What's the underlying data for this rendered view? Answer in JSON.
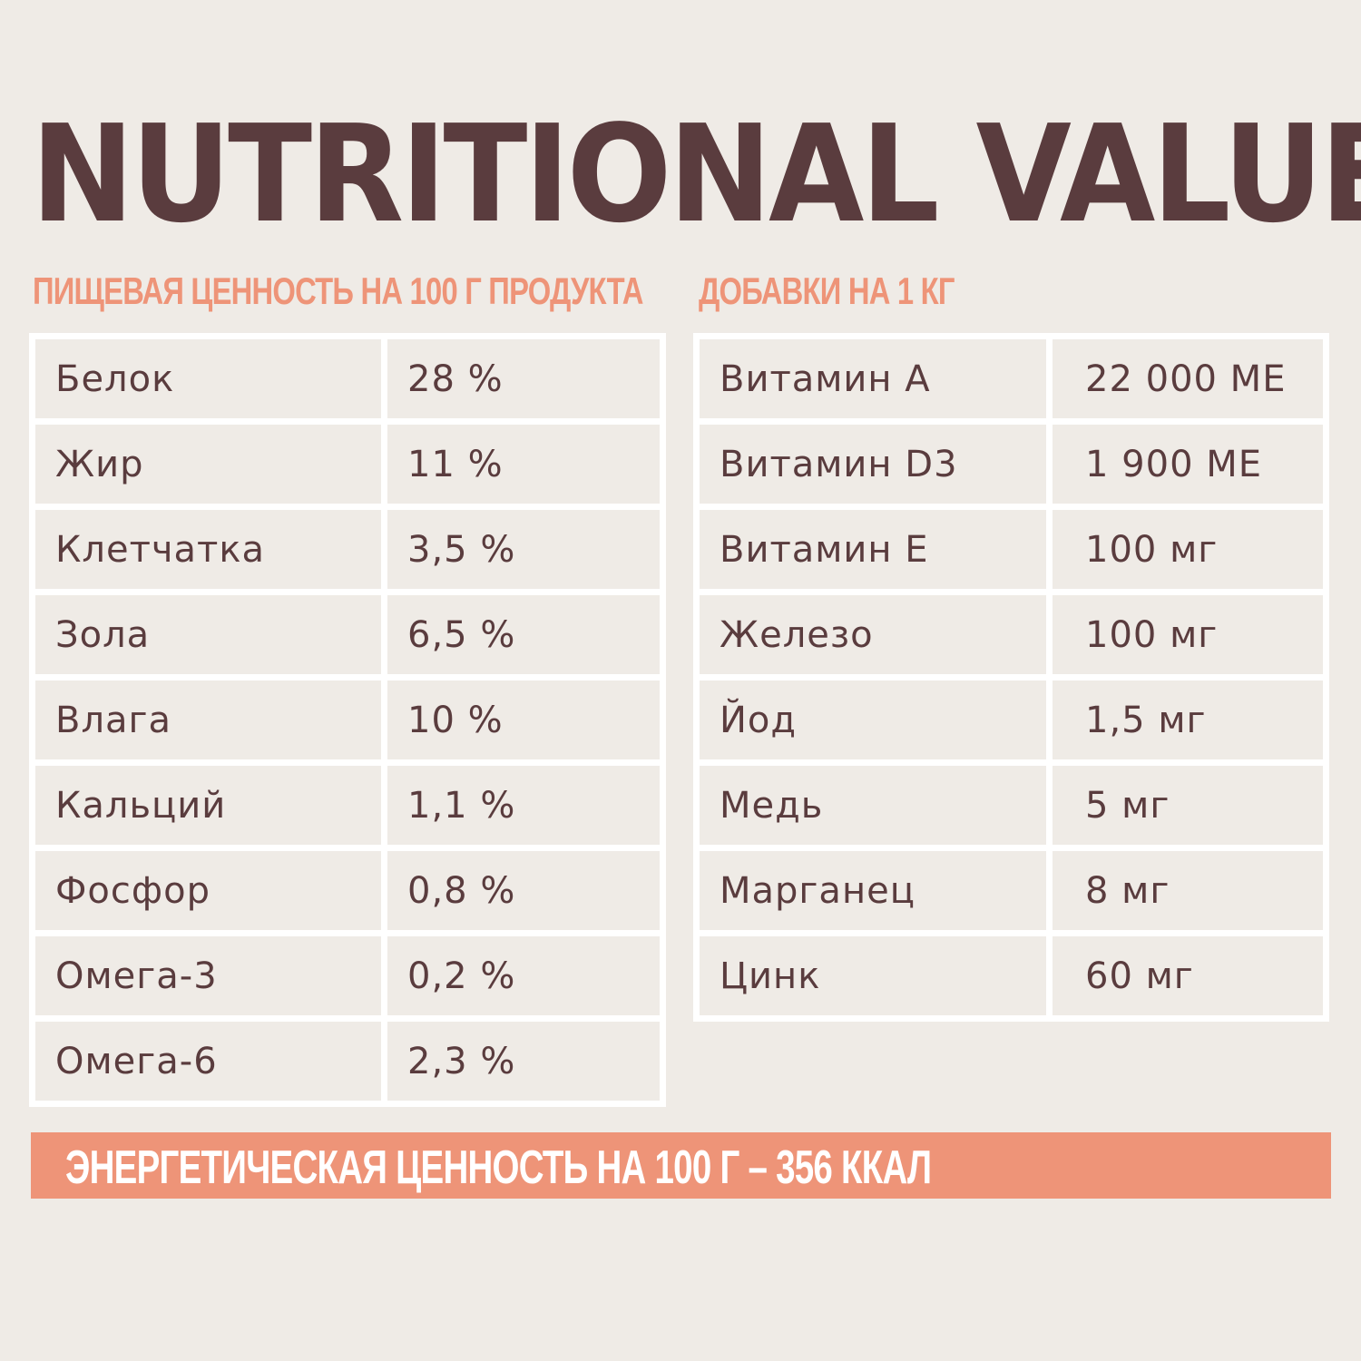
{
  "title": "NUTRITIONAL VALUE",
  "nutrition": {
    "heading": "ПИЩЕВАЯ ЦЕННОСТЬ НА 100 Г ПРОДУКТА",
    "rows": [
      {
        "name": "Белок",
        "value": "28 %"
      },
      {
        "name": "Жир",
        "value": "11 %"
      },
      {
        "name": "Клетчатка",
        "value": "3,5 %"
      },
      {
        "name": "Зола",
        "value": "6,5 %"
      },
      {
        "name": "Влага",
        "value": "10 %"
      },
      {
        "name": "Кальций",
        "value": "1,1 %"
      },
      {
        "name": "Фосфор",
        "value": "0,8 %"
      },
      {
        "name": "Омега-3",
        "value": "0,2 %"
      },
      {
        "name": "Омега-6",
        "value": "2,3 %"
      }
    ]
  },
  "additives": {
    "heading": "ДОБАВКИ НА 1 КГ",
    "rows": [
      {
        "name": "Витамин А",
        "value": "22 000 МЕ"
      },
      {
        "name": "Витамин D3",
        "value": "1 900 МЕ"
      },
      {
        "name": "Витамин Е",
        "value": "100 мг"
      },
      {
        "name": "Железо",
        "value": "100 мг"
      },
      {
        "name": "Йод",
        "value": "1,5 мг"
      },
      {
        "name": "Медь",
        "value": "5 мг"
      },
      {
        "name": "Марганец",
        "value": "8 мг"
      },
      {
        "name": "Цинк",
        "value": "60 мг"
      }
    ]
  },
  "energy": "ЭНЕРГЕТИЧЕСКАЯ ЦЕННОСТЬ НА 100 Г – 356 ККАЛ",
  "colors": {
    "background": "#efebe6",
    "title": "#5a3c3e",
    "accent": "#ee9478",
    "grid": "#ffffff"
  }
}
